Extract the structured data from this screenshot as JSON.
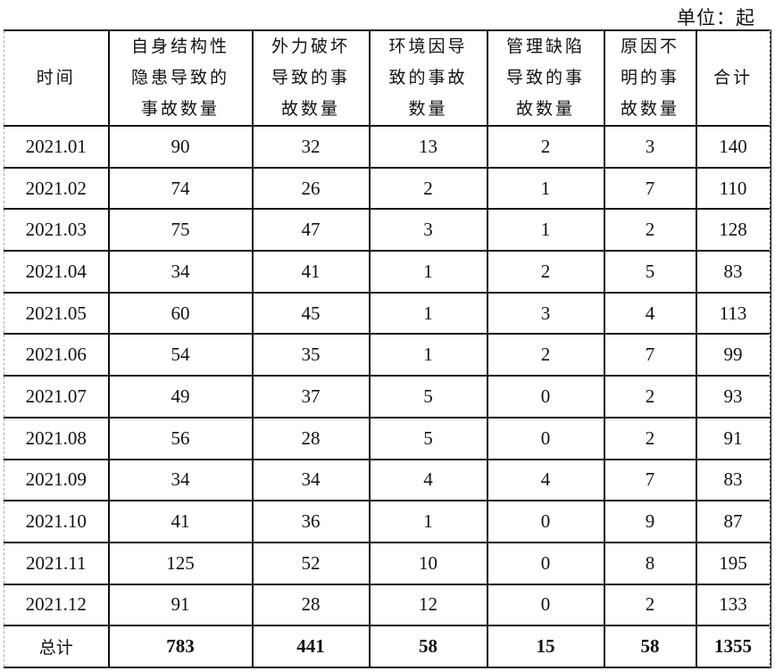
{
  "unit_label": "单位：起",
  "headers": [
    "时间",
    "自身结构性隐患导致的事故数量",
    "外力破坏导致的事故数量",
    "环境因导致的事故数量",
    "管理缺陷导致的事故数量",
    "原因不明的事故数量",
    "合计"
  ],
  "header_lines": [
    [
      "时间"
    ],
    [
      "自身结构性",
      "隐患导致的",
      "事故数量"
    ],
    [
      "外力破坏",
      "导致的事",
      "故数量"
    ],
    [
      "环境因导",
      "致的事故",
      "数量"
    ],
    [
      "管理缺陷",
      "导致的事",
      "故数量"
    ],
    [
      "原因不",
      "明的事",
      "故数量"
    ],
    [
      "合计"
    ]
  ],
  "rows": [
    [
      "2021.01",
      "90",
      "32",
      "13",
      "2",
      "3",
      "140"
    ],
    [
      "2021.02",
      "74",
      "26",
      "2",
      "1",
      "7",
      "110"
    ],
    [
      "2021.03",
      "75",
      "47",
      "3",
      "1",
      "2",
      "128"
    ],
    [
      "2021.04",
      "34",
      "41",
      "1",
      "2",
      "5",
      "83"
    ],
    [
      "2021.05",
      "60",
      "45",
      "1",
      "3",
      "4",
      "113"
    ],
    [
      "2021.06",
      "54",
      "35",
      "1",
      "2",
      "7",
      "99"
    ],
    [
      "2021.07",
      "49",
      "37",
      "5",
      "0",
      "2",
      "93"
    ],
    [
      "2021.08",
      "56",
      "28",
      "5",
      "0",
      "2",
      "91"
    ],
    [
      "2021.09",
      "34",
      "34",
      "4",
      "4",
      "7",
      "83"
    ],
    [
      "2021.10",
      "41",
      "36",
      "1",
      "0",
      "9",
      "87"
    ],
    [
      "2021.11",
      "125",
      "52",
      "10",
      "0",
      "8",
      "195"
    ],
    [
      "2021.12",
      "91",
      "28",
      "12",
      "0",
      "2",
      "133"
    ]
  ],
  "total_row": [
    "总计",
    "783",
    "441",
    "58",
    "15",
    "58",
    "1355"
  ]
}
